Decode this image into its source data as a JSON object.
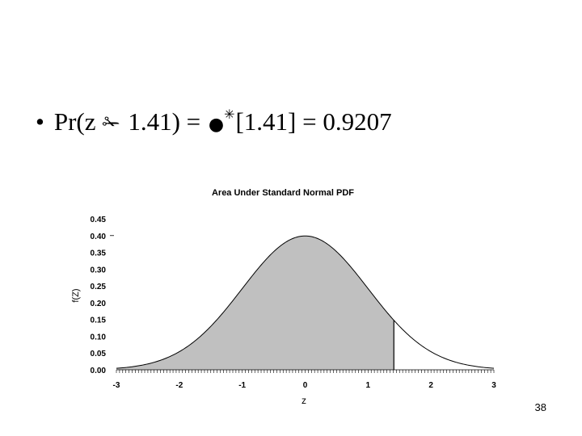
{
  "slide": {
    "bullet": "•",
    "formula_lead": "Pr(z",
    "glyph_scissors": "✁",
    "formula_mid": "1.41) =",
    "glyph_bomb": "●",
    "glyph_spark": "✳",
    "formula_tail": "[1.41] = 0.9207",
    "page_number": "38"
  },
  "chart_data": {
    "type": "area",
    "title": "Area Under Standard Normal PDF",
    "xlabel": "z",
    "ylabel": "f(Z)",
    "xlim": [
      -3,
      3
    ],
    "ylim": [
      0,
      0.45
    ],
    "x_ticks": [
      -3,
      -2,
      -1,
      0,
      1,
      2,
      3
    ],
    "x_tick_labels": [
      "-3",
      "-2",
      "-1",
      "0",
      "1",
      "2",
      "3"
    ],
    "y_ticks": [
      0,
      0.05,
      0.1,
      0.15,
      0.2,
      0.25,
      0.3,
      0.35,
      0.4,
      0.45
    ],
    "y_tick_labels": [
      "0.00",
      "0.05",
      "0.10",
      "0.15",
      "0.20",
      "0.25",
      "0.30",
      "0.35",
      "0.40",
      "0.45"
    ],
    "shaded_upper_bound": 1.41,
    "shaded_area": 0.9207,
    "curve": "standard normal pdf",
    "grid": false,
    "colors": {
      "fill": "#c0c0c0",
      "line": "#000000"
    }
  }
}
